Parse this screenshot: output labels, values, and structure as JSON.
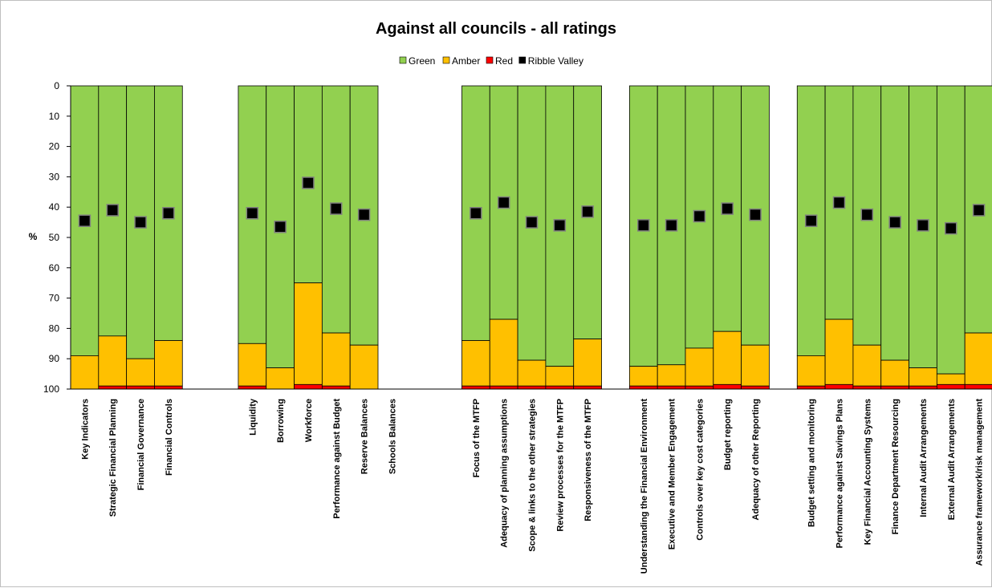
{
  "chart_data": {
    "type": "bar",
    "title": "Against all councils - all ratings",
    "ylabel": "%",
    "xlabel": "",
    "ylim": [
      0,
      100
    ],
    "y_axis_inverted": true,
    "y_ticks": [
      "0",
      "10",
      "20",
      "30",
      "40",
      "50",
      "60",
      "70",
      "80",
      "90",
      "100"
    ],
    "grid": false,
    "legend_position": "top-center",
    "legend": [
      {
        "name": "Green",
        "color": "#92d050",
        "marker": "square"
      },
      {
        "name": "Amber",
        "color": "#ffc000",
        "marker": "square"
      },
      {
        "name": "Red",
        "color": "#ff0000",
        "marker": "square"
      },
      {
        "name": "Ribble Valley",
        "color": "#000000",
        "marker": "square"
      }
    ],
    "categories": [
      "Key Indicators",
      "Strategic Financial Planning",
      "Financial Governance",
      "Financial Controls",
      "",
      "",
      "Liquidity",
      "Borrowing",
      "Workforce",
      "Performance against Budget",
      "Reserve Balances",
      "Schools Balances",
      "",
      "",
      "Focus of the MTFP",
      "Adequacy of planning assumptions",
      "Scope & links to the other strategies",
      "Review processes for the MTFP",
      "Responsiveness of the MTFP",
      "",
      "Understanding the Financial Environment",
      "Executive and Member Engagement",
      "Controls over key cost categories",
      "Budget reporting",
      "Adequacy of other Reporting",
      "",
      "Budget setting and monitoring",
      "Performance against Savings Plans",
      "Key Financial Accounting Systems",
      "Finance Department Resourcing",
      "Internal Audit Arrangements",
      "External Audit Arrangements",
      "Assurance framework/risk management"
    ],
    "series": [
      {
        "name": "Green",
        "color": "#92d050",
        "values": [
          89,
          82.5,
          90,
          84,
          null,
          null,
          85,
          93,
          65,
          81.5,
          85.5,
          null,
          null,
          null,
          84,
          77,
          90.5,
          92.5,
          83.5,
          null,
          92.5,
          92,
          86.5,
          81,
          85.5,
          null,
          89,
          77,
          85.5,
          90.5,
          93,
          95,
          81.5
        ]
      },
      {
        "name": "Amber",
        "color": "#ffc000",
        "values": [
          11,
          16.5,
          9,
          15,
          null,
          null,
          14,
          7,
          33.5,
          17.5,
          14.5,
          null,
          null,
          null,
          15,
          22,
          8.5,
          6.5,
          15.5,
          null,
          6.5,
          7,
          12.5,
          17.5,
          13.5,
          null,
          10,
          21.5,
          13.5,
          8.5,
          6,
          3.5,
          17
        ]
      },
      {
        "name": "Red",
        "color": "#ff0000",
        "values": [
          0,
          1,
          1,
          1,
          null,
          null,
          1,
          0,
          1.5,
          1,
          0,
          null,
          null,
          null,
          1,
          1,
          1,
          1,
          1,
          null,
          1,
          1,
          1,
          1.5,
          1,
          null,
          1,
          1.5,
          1,
          1,
          1,
          1.5,
          1.5
        ]
      },
      {
        "name": "Ribble Valley",
        "color": "#000000",
        "marker": "square",
        "values": [
          44.5,
          41,
          45,
          42,
          null,
          null,
          42,
          46.5,
          32,
          40.5,
          42.5,
          null,
          null,
          null,
          42,
          38.5,
          45,
          46,
          41.5,
          null,
          46,
          46,
          43,
          40.5,
          42.5,
          null,
          44.5,
          38.5,
          42.5,
          45,
          46,
          47,
          41
        ]
      }
    ]
  }
}
